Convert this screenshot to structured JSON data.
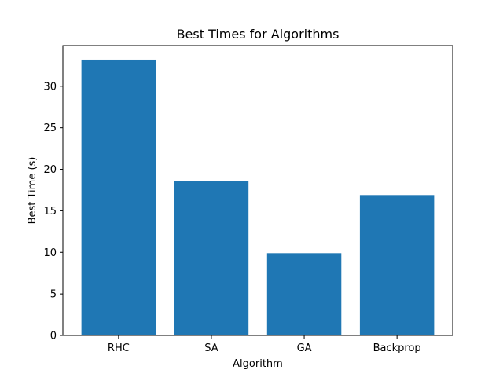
{
  "chart_data": {
    "type": "bar",
    "title": "Best Times for Algorithms",
    "xlabel": "Algorithm",
    "ylabel": "Best Time (s)",
    "categories": [
      "RHC",
      "SA",
      "GA",
      "Backprop"
    ],
    "values": [
      33.2,
      18.6,
      9.9,
      16.9
    ],
    "ylim": [
      0,
      34.9
    ],
    "yticks": [
      0,
      5,
      10,
      15,
      20,
      25,
      30
    ],
    "grid": false,
    "bar_color": "#1f77b4"
  }
}
